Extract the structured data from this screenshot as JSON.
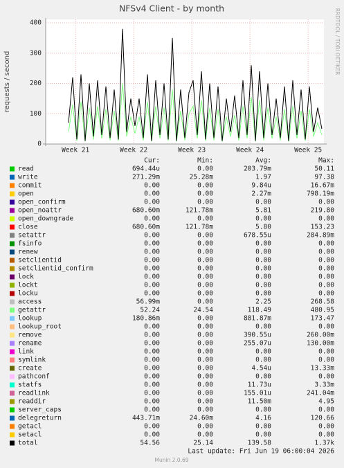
{
  "chart_data": {
    "type": "line",
    "title": "NFSv4 Client - by month",
    "y_label": "requests / second",
    "side_label": "RRDTOOL / TOBI OETIKER",
    "ylim": [
      0,
      400
    ],
    "yticks": [
      0,
      100,
      200,
      300,
      400
    ],
    "xlim": [
      0,
      33.5
    ],
    "xticks": [
      {
        "value": 3.6,
        "label": "Week 21"
      },
      {
        "value": 10.6,
        "label": "Week 22"
      },
      {
        "value": 17.6,
        "label": "Week 23"
      },
      {
        "value": 24.6,
        "label": "Week 24"
      },
      {
        "value": 31.6,
        "label": "Week 25"
      }
    ],
    "grid": true,
    "x": [
      2.75,
      3.25,
      3.75,
      4.25,
      4.75,
      5.25,
      5.75,
      6.25,
      6.75,
      7.25,
      7.75,
      8.25,
      8.75,
      9.25,
      9.75,
      10.25,
      10.75,
      11.25,
      11.75,
      12.25,
      12.75,
      13.25,
      13.75,
      14.25,
      14.75,
      15.25,
      15.75,
      16.25,
      16.75,
      17.25,
      17.75,
      18.25,
      18.75,
      19.25,
      19.75,
      20.25,
      20.75,
      21.25,
      21.75,
      22.25,
      22.75,
      23.25,
      23.75,
      24.25,
      24.75,
      25.25,
      25.75,
      26.25,
      26.75,
      27.25,
      27.75,
      28.25,
      28.75,
      29.25,
      29.75,
      30.25,
      30.75,
      31.25,
      31.75,
      32.25,
      32.75,
      33.25
    ],
    "legend_headers": [
      "Cur:",
      "Min:",
      "Avg:",
      "Max:"
    ],
    "series": [
      {
        "name": "read",
        "color": "#00CC00",
        "stats": [
          "694.44u",
          "0.00",
          "203.79m",
          "50.11"
        ]
      },
      {
        "name": "write",
        "color": "#0066B3",
        "stats": [
          "271.29m",
          "25.28m",
          "1.97",
          "97.38"
        ]
      },
      {
        "name": "commit",
        "color": "#FF8000",
        "stats": [
          "0.00",
          "0.00",
          "9.84u",
          "16.67m"
        ]
      },
      {
        "name": "open",
        "color": "#FFCC00",
        "stats": [
          "0.00",
          "0.00",
          "2.27m",
          "798.19m"
        ]
      },
      {
        "name": "open_confirm",
        "color": "#330099",
        "stats": [
          "0.00",
          "0.00",
          "0.00",
          "0.00"
        ]
      },
      {
        "name": "open_noattr",
        "color": "#990099",
        "stats": [
          "680.60m",
          "121.78m",
          "5.81",
          "219.80"
        ]
      },
      {
        "name": "open_downgrade",
        "color": "#CCFF00",
        "stats": [
          "0.00",
          "0.00",
          "0.00",
          "0.00"
        ]
      },
      {
        "name": "close",
        "color": "#FF0000",
        "stats": [
          "680.60m",
          "121.78m",
          "5.80",
          "153.23"
        ]
      },
      {
        "name": "setattr",
        "color": "#808080",
        "stats": [
          "0.00",
          "0.00",
          "678.55u",
          "284.89m"
        ]
      },
      {
        "name": "fsinfo",
        "color": "#008F00",
        "stats": [
          "0.00",
          "0.00",
          "0.00",
          "0.00"
        ]
      },
      {
        "name": "renew",
        "color": "#00487D",
        "stats": [
          "0.00",
          "0.00",
          "0.00",
          "0.00"
        ]
      },
      {
        "name": "setclientid",
        "color": "#B35A00",
        "stats": [
          "0.00",
          "0.00",
          "0.00",
          "0.00"
        ]
      },
      {
        "name": "setclientid_confirm",
        "color": "#B38F00",
        "stats": [
          "0.00",
          "0.00",
          "0.00",
          "0.00"
        ]
      },
      {
        "name": "lock",
        "color": "#6B006B",
        "stats": [
          "0.00",
          "0.00",
          "0.00",
          "0.00"
        ]
      },
      {
        "name": "lockt",
        "color": "#8FB300",
        "stats": [
          "0.00",
          "0.00",
          "0.00",
          "0.00"
        ]
      },
      {
        "name": "locku",
        "color": "#B30000",
        "stats": [
          "0.00",
          "0.00",
          "0.00",
          "0.00"
        ]
      },
      {
        "name": "access",
        "color": "#BEBEBE",
        "stats": [
          "56.99m",
          "0.00",
          "2.25",
          "268.58"
        ]
      },
      {
        "name": "getattr",
        "color": "#80FF80",
        "stats": [
          "52.24",
          "24.54",
          "118.49",
          "480.95"
        ],
        "values": [
          40,
          130,
          10,
          140,
          8,
          120,
          15,
          125,
          18,
          115,
          12,
          110,
          10,
          200,
          25,
          90,
          35,
          90,
          12,
          140,
          8,
          125,
          18,
          120,
          10,
          180,
          8,
          110,
          12,
          100,
          125,
          18,
          145,
          10,
          120,
          12,
          115,
          8,
          90,
          25,
          95,
          12,
          125,
          18,
          155,
          8,
          145,
          12,
          120,
          18,
          90,
          12,
          115,
          8,
          125,
          18,
          110,
          10,
          115,
          25,
          70,
          30
        ]
      },
      {
        "name": "lookup",
        "color": "#80C9FF",
        "stats": [
          "180.86m",
          "0.00",
          "881.87m",
          "173.47"
        ]
      },
      {
        "name": "lookup_root",
        "color": "#FFC080",
        "stats": [
          "0.00",
          "0.00",
          "0.00",
          "0.00"
        ]
      },
      {
        "name": "remove",
        "color": "#FFE680",
        "stats": [
          "0.00",
          "0.00",
          "390.55u",
          "260.00m"
        ]
      },
      {
        "name": "rename",
        "color": "#AA80FF",
        "stats": [
          "0.00",
          "0.00",
          "255.07u",
          "130.00m"
        ]
      },
      {
        "name": "link",
        "color": "#EE00CC",
        "stats": [
          "0.00",
          "0.00",
          "0.00",
          "0.00"
        ]
      },
      {
        "name": "symlink",
        "color": "#FF8080",
        "stats": [
          "0.00",
          "0.00",
          "0.00",
          "0.00"
        ]
      },
      {
        "name": "create",
        "color": "#666600",
        "stats": [
          "0.00",
          "0.00",
          "4.54u",
          "13.33m"
        ]
      },
      {
        "name": "pathconf",
        "color": "#FFBFFF",
        "stats": [
          "0.00",
          "0.00",
          "0.00",
          "0.00"
        ]
      },
      {
        "name": "statfs",
        "color": "#00FFCC",
        "stats": [
          "0.00",
          "0.00",
          "11.73u",
          "3.33m"
        ]
      },
      {
        "name": "readlink",
        "color": "#CC6699",
        "stats": [
          "0.00",
          "0.00",
          "155.01u",
          "241.04m"
        ]
      },
      {
        "name": "readdir",
        "color": "#999900",
        "stats": [
          "0.00",
          "0.00",
          "11.50m",
          "4.95"
        ]
      },
      {
        "name": "server_caps",
        "color": "#00CC00",
        "stats": [
          "0.00",
          "0.00",
          "0.00",
          "0.00"
        ]
      },
      {
        "name": "delegreturn",
        "color": "#0066B3",
        "stats": [
          "443.71m",
          "24.60m",
          "4.16",
          "120.66"
        ]
      },
      {
        "name": "getacl",
        "color": "#FF8000",
        "stats": [
          "0.00",
          "0.00",
          "0.00",
          "0.00"
        ]
      },
      {
        "name": "setacl",
        "color": "#FFCC00",
        "stats": [
          "0.00",
          "0.00",
          "0.00",
          "0.00"
        ]
      },
      {
        "name": "total",
        "color": "#000000",
        "stats": [
          "54.56",
          "25.14",
          "139.58",
          "1.37k"
        ],
        "values": [
          70,
          220,
          15,
          230,
          10,
          200,
          25,
          210,
          30,
          190,
          20,
          180,
          15,
          380,
          40,
          150,
          60,
          150,
          20,
          230,
          10,
          210,
          30,
          200,
          15,
          350,
          10,
          180,
          20,
          170,
          210,
          30,
          240,
          15,
          200,
          20,
          190,
          10,
          150,
          40,
          160,
          20,
          210,
          30,
          260,
          10,
          240,
          20,
          200,
          30,
          150,
          20,
          190,
          10,
          210,
          30,
          180,
          15,
          190,
          40,
          120,
          50
        ]
      }
    ],
    "last_update": "Last update: Fri Jun 19 06:00:04 2026",
    "footer": "Munin 2.0.69"
  }
}
